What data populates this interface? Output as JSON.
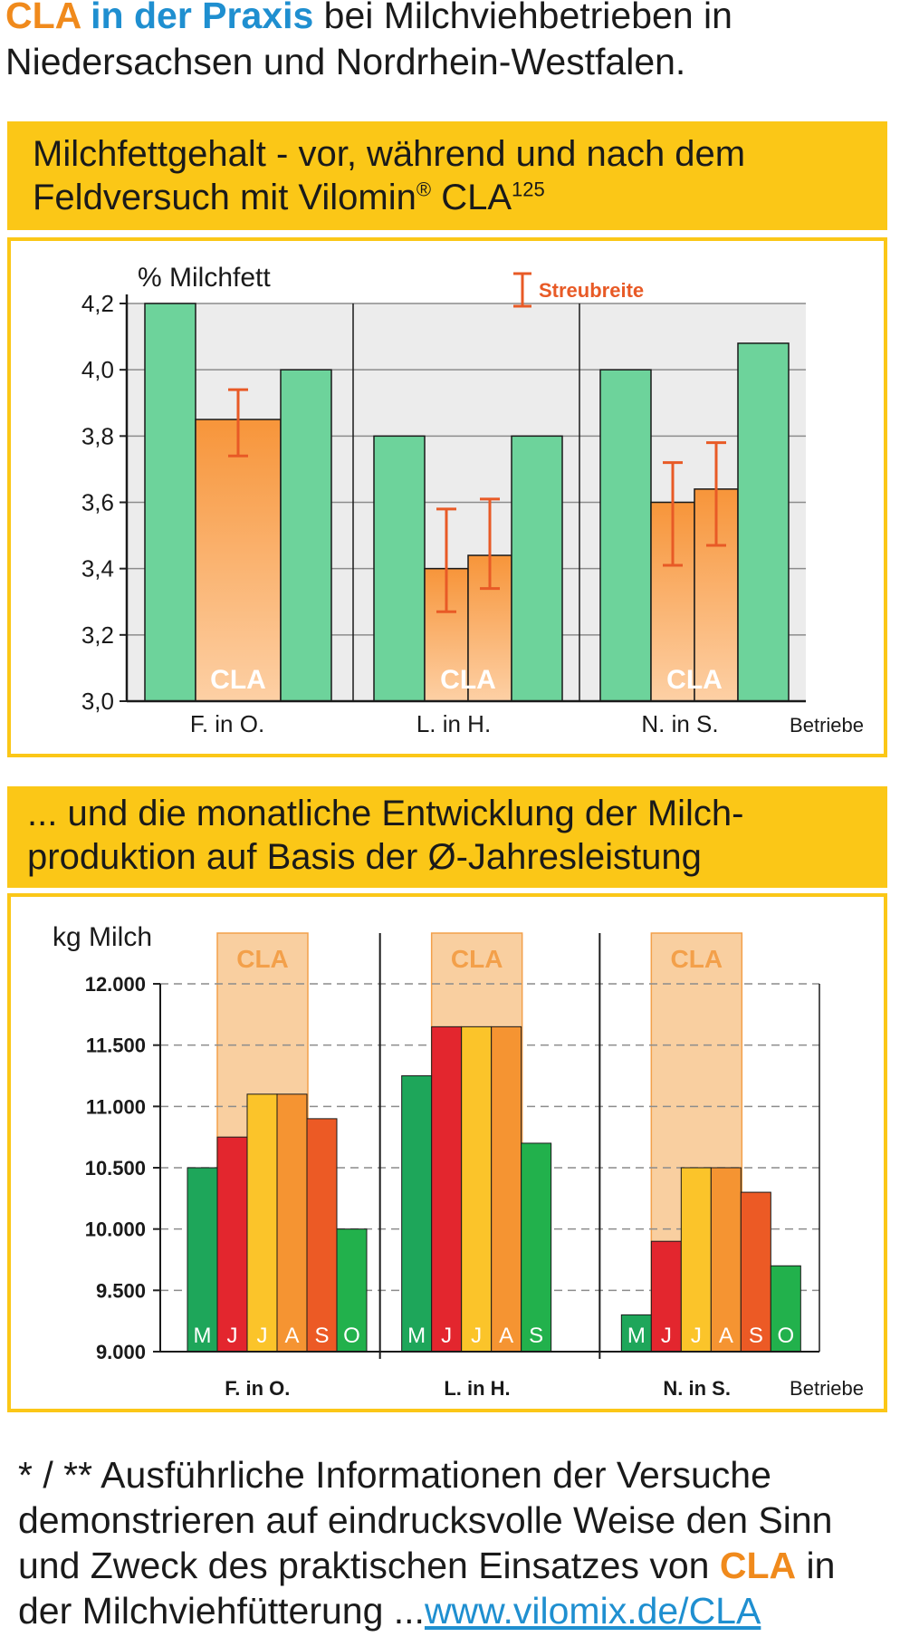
{
  "intro": {
    "part1": "CLA",
    "part2": " in der Praxis",
    "part3": " bei Milchviehbetrieben in Niedersachsen und Nordrhein-Westfalen."
  },
  "chart1_header": {
    "line1": "Milchfettgehalt - vor, während und nach dem",
    "line2a": "Feldversuch mit Vilomin",
    "reg": "®",
    "line2b": " CLA",
    "sup": "125"
  },
  "chart2_header": {
    "line1": "... und die monatliche Entwicklung der Milch-",
    "line2": "produktion auf Basis der Ø-Jahresleistung"
  },
  "footer": {
    "text1": "* / ** Ausführliche Informationen der Versuche demonstrieren auf eindrucksvolle Weise den Sinn und Zweck des praktischen Einsatzes von ",
    "cla": "CLA",
    "text2": " in der Milchviehfütterung   ...",
    "link": "www.vilomix.de/CLA"
  },
  "chart_data": [
    {
      "type": "bar",
      "ylabel": "% Milchfett",
      "xlabel": "Betriebe",
      "ylim": [
        3.0,
        4.2
      ],
      "yticks": [
        "3,0",
        "3,2",
        "3,4",
        "3,6",
        "3,8",
        "4,0",
        "4,2"
      ],
      "grid": true,
      "legend": {
        "label": "Streubreite",
        "placement": "top-right"
      },
      "colors": {
        "base": "#6dd39b",
        "cla_top": "#f7953a",
        "cla_bottom": "#fdd0a5",
        "error": "#e85a26"
      },
      "groups": [
        {
          "name": "F. in O.",
          "label": "CLA",
          "bars": [
            {
              "value": 4.2,
              "cla": false
            },
            {
              "value": 3.85,
              "cla": true,
              "err": [
                3.74,
                3.94
              ]
            },
            {
              "value": 4.0,
              "cla": false
            }
          ]
        },
        {
          "name": "L. in H.",
          "label": "CLA",
          "bars": [
            {
              "value": 3.8,
              "cla": false
            },
            {
              "value": 3.4,
              "cla": true,
              "err": [
                3.27,
                3.58
              ]
            },
            {
              "value": 3.44,
              "cla": true,
              "err": [
                3.34,
                3.61
              ]
            },
            {
              "value": 3.8,
              "cla": false
            }
          ]
        },
        {
          "name": "N. in S.",
          "label": "CLA",
          "bars": [
            {
              "value": 4.0,
              "cla": false
            },
            {
              "value": 3.6,
              "cla": true,
              "err": [
                3.41,
                3.72
              ]
            },
            {
              "value": 3.64,
              "cla": true,
              "err": [
                3.47,
                3.78
              ]
            },
            {
              "value": 4.08,
              "cla": false
            }
          ]
        }
      ]
    },
    {
      "type": "bar",
      "ylabel": "kg Milch",
      "xlabel": "Betriebe",
      "ylim": [
        9000,
        12000
      ],
      "yticks": [
        "9.000",
        "9.500",
        "10.000",
        "10.500",
        "11.000",
        "11.500",
        "12.000"
      ],
      "grid": true,
      "highlight_label": "CLA",
      "colors": {
        "highlight": "#f9cfa0",
        "highlight_border": "#f3a04a"
      },
      "groups": [
        {
          "name": "F. in O.",
          "cla_months": [
            "J",
            "J",
            "A"
          ],
          "bars": [
            {
              "month": "M",
              "value": 10500,
              "color": "#1ea65a"
            },
            {
              "month": "J",
              "value": 10750,
              "color": "#e3262e"
            },
            {
              "month": "J",
              "value": 11100,
              "color": "#fbc42a"
            },
            {
              "month": "A",
              "value": 11100,
              "color": "#f59432"
            },
            {
              "month": "S",
              "value": 10900,
              "color": "#ec5a25"
            },
            {
              "month": "O",
              "value": 10000,
              "color": "#22b14c"
            }
          ]
        },
        {
          "name": "L. in H.",
          "bars": [
            {
              "month": "M",
              "value": 11250,
              "color": "#1ea65a"
            },
            {
              "month": "J",
              "value": 11650,
              "color": "#e3262e"
            },
            {
              "month": "J",
              "value": 11650,
              "color": "#fbc42a"
            },
            {
              "month": "A",
              "value": 11650,
              "color": "#f59432"
            },
            {
              "month": "S",
              "value": 10700,
              "color": "#22b14c"
            }
          ]
        },
        {
          "name": "N. in S.",
          "bars": [
            {
              "month": "M",
              "value": 9300,
              "color": "#1ea65a"
            },
            {
              "month": "J",
              "value": 9900,
              "color": "#e3262e"
            },
            {
              "month": "J",
              "value": 10500,
              "color": "#fbc42a"
            },
            {
              "month": "A",
              "value": 10500,
              "color": "#f59432"
            },
            {
              "month": "S",
              "value": 10300,
              "color": "#ec5a25"
            },
            {
              "month": "O",
              "value": 9700,
              "color": "#22b14c"
            }
          ]
        }
      ]
    }
  ]
}
